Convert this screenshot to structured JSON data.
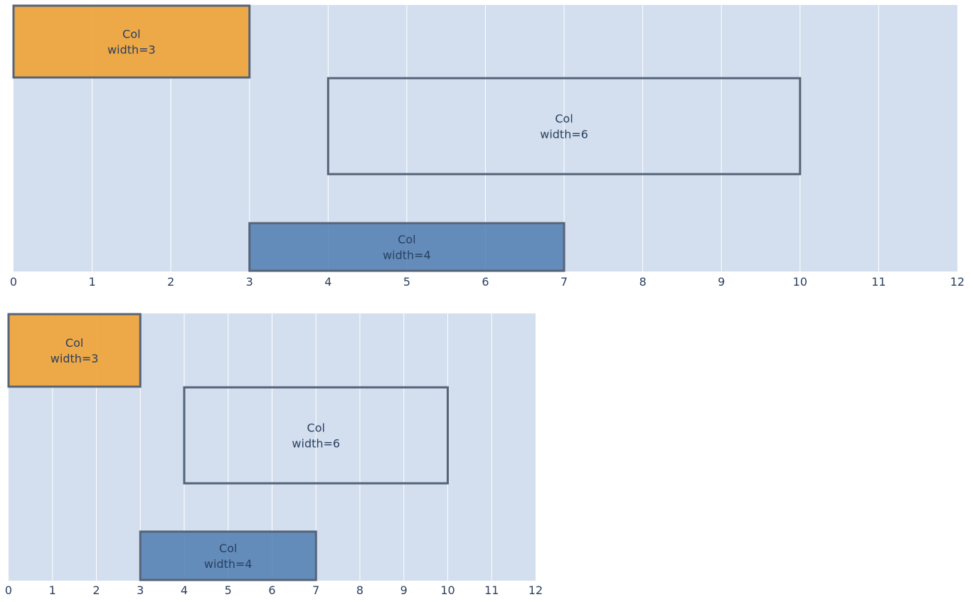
{
  "chart_data": [
    {
      "type": "bar",
      "orientation": "horizontal",
      "xlim": [
        0,
        12
      ],
      "xticks": [
        0,
        1,
        2,
        3,
        4,
        5,
        6,
        7,
        8,
        9,
        10,
        11,
        12
      ],
      "grid": true,
      "bars": [
        {
          "start": 0,
          "end": 3,
          "label_line1": "Col",
          "label_line2": "width=3",
          "fill": "#f0a030",
          "opacity": 0.88
        },
        {
          "start": 4,
          "end": 10,
          "label_line1": "Col",
          "label_line2": "width=6",
          "fill": "none",
          "opacity": 1
        },
        {
          "start": 3,
          "end": 7,
          "label_line1": "Col",
          "label_line2": "width=4",
          "fill": "#4a7ab0",
          "opacity": 0.82
        }
      ]
    },
    {
      "type": "bar",
      "orientation": "horizontal",
      "xlim": [
        0,
        12
      ],
      "xticks": [
        0,
        1,
        2,
        3,
        4,
        5,
        6,
        7,
        8,
        9,
        10,
        11,
        12
      ],
      "grid": true,
      "bars": [
        {
          "start": 0,
          "end": 3,
          "label_line1": "Col",
          "label_line2": "width=3",
          "fill": "#f0a030",
          "opacity": 0.88
        },
        {
          "start": 4,
          "end": 10,
          "label_line1": "Col",
          "label_line2": "width=6",
          "fill": "none",
          "opacity": 1
        },
        {
          "start": 3,
          "end": 7,
          "label_line1": "Col",
          "label_line2": "width=4",
          "fill": "#4a7ab0",
          "opacity": 0.82
        }
      ]
    }
  ]
}
